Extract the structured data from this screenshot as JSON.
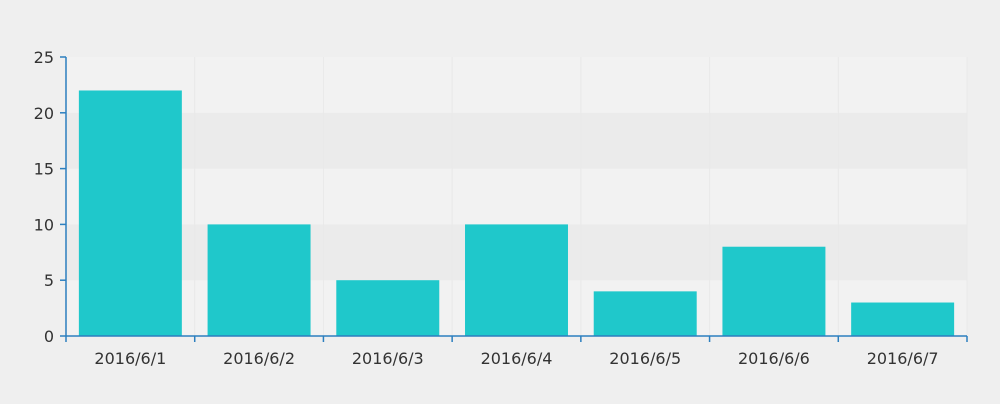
{
  "chart_data": {
    "type": "bar",
    "categories": [
      "2016/6/1",
      "2016/6/2",
      "2016/6/3",
      "2016/6/4",
      "2016/6/5",
      "2016/6/6",
      "2016/6/7"
    ],
    "series": [
      {
        "values": [
          22,
          10,
          5,
          10,
          4,
          8,
          3
        ]
      }
    ],
    "yticks": [
      "0",
      "5",
      "10",
      "15",
      "20",
      "25"
    ],
    "ylim": [
      0,
      25
    ],
    "grid": true,
    "legend": "none",
    "colors": {
      "bar": "#1fc8cb",
      "axis": "#2c7fbf",
      "background": "#efefef",
      "band_light": "#f2f2f2",
      "band_dark": "#ebebeb",
      "vgrid": "#e9e9e9",
      "text": "#333333"
    }
  }
}
